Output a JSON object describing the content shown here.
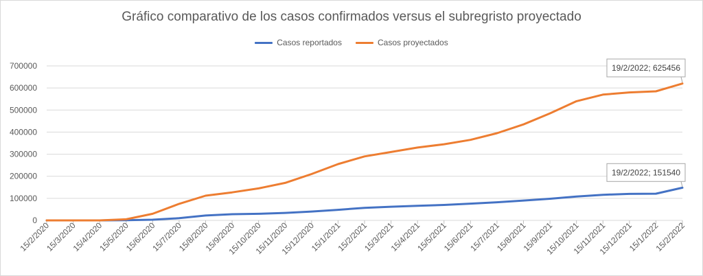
{
  "chart_data": {
    "type": "line",
    "title": "Gráfico comparativo de los casos confirmados versus el subregristo proyectado",
    "xlabel": "",
    "ylabel": "",
    "ylim": [
      0,
      700000
    ],
    "yticks": [
      "0",
      "100000",
      "200000",
      "300000",
      "400000",
      "500000",
      "600000",
      "700000"
    ],
    "categories": [
      "15/2/2020",
      "15/3/2020",
      "15/4/2020",
      "15/5/2020",
      "15/6/2020",
      "15/7/2020",
      "15/8/2020",
      "15/9/2020",
      "15/10/2020",
      "15/11/2020",
      "15/12/2020",
      "15/1/2021",
      "15/2/2021",
      "15/3/2021",
      "15/4/2021",
      "15/5/2021",
      "15/6/2021",
      "15/7/2021",
      "15/8/2021",
      "15/9/2021",
      "15/10/2021",
      "15/11/2021",
      "15/12/2021",
      "15/1/2022",
      "15/2/2022"
    ],
    "grid": true,
    "legend_position": "top",
    "series": [
      {
        "name": "Casos reportados",
        "color": "#4472c4",
        "values": [
          0,
          0,
          0,
          1000,
          3000,
          10000,
          22000,
          28000,
          30000,
          34000,
          40000,
          48000,
          57000,
          62000,
          66000,
          70000,
          76000,
          82000,
          90000,
          98000,
          108000,
          116000,
          120000,
          121000,
          148000
        ]
      },
      {
        "name": "Casos proyectados",
        "color": "#ed7d31",
        "values": [
          0,
          0,
          0,
          5000,
          30000,
          75000,
          112000,
          127000,
          145000,
          170000,
          210000,
          255000,
          290000,
          310000,
          330000,
          345000,
          365000,
          395000,
          435000,
          485000,
          540000,
          570000,
          580000,
          585000,
          620000
        ]
      }
    ],
    "annotations": [
      {
        "series": 0,
        "text": "19/2/2022; 151540",
        "value": 151540
      },
      {
        "series": 1,
        "text": "19/2/2022; 625456",
        "value": 625456
      }
    ]
  }
}
